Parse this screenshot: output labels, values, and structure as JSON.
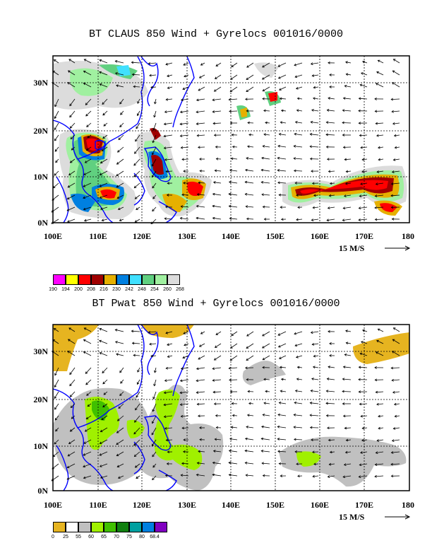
{
  "panels": [
    {
      "title": "BT CLAUS 850 Wind + Gyrelocs 001016/0000",
      "lat_labels": [
        "30N",
        "20N",
        "10N",
        "0N"
      ],
      "lon_labels": [
        "100E",
        "110E",
        "120E",
        "130E",
        "140E",
        "150E",
        "160E",
        "170E",
        "180"
      ],
      "reference_vector": "15 M/S",
      "legend": {
        "colors": [
          "#ff00ff",
          "#ffff00",
          "#ff0000",
          "#a00000",
          "#e6b000",
          "#0080e0",
          "#40e0ff",
          "#60d080",
          "#a0f0a0",
          "#dcdcdc"
        ],
        "ticks": [
          "190",
          "194",
          "200",
          "208",
          "216",
          "230",
          "242",
          "248",
          "254",
          "260",
          "268"
        ]
      }
    },
    {
      "title": "BT Pwat 850 Wind + Gyrelocs 001016/0000",
      "lat_labels": [
        "30N",
        "20N",
        "10N",
        "0N"
      ],
      "lon_labels": [
        "100E",
        "110E",
        "120E",
        "130E",
        "140E",
        "150E",
        "160E",
        "170E",
        "180"
      ],
      "reference_vector": "15 M/S",
      "legend": {
        "colors": [
          "#e6b420",
          "#ffffff",
          "#c0c0c0",
          "#a0f000",
          "#40c000",
          "#108010",
          "#00a0a0",
          "#0080e0",
          "#8000c0"
        ],
        "ticks": [
          "0",
          "25",
          "55",
          "60",
          "65",
          "70",
          "75",
          "80",
          "68.4"
        ]
      }
    }
  ],
  "colors": {
    "coast": "#0000ff",
    "grid": "#000000"
  }
}
